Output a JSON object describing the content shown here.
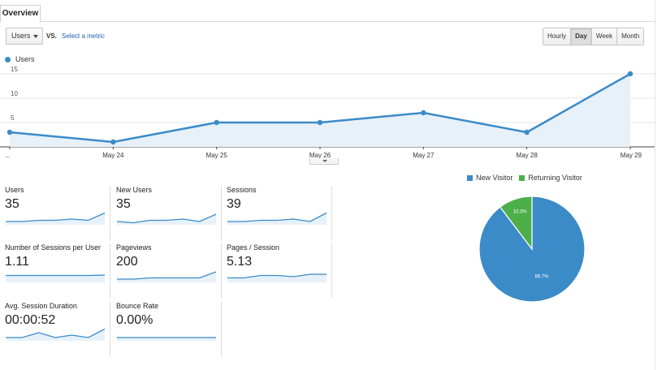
{
  "tabs": {
    "overview": "Overview"
  },
  "toolbar": {
    "metric_value": "Users",
    "vs": "VS.",
    "select_metric": "Select a metric",
    "granularity": [
      "Hourly",
      "Day",
      "Week",
      "Month"
    ],
    "active_granularity": "Day"
  },
  "legend": {
    "label": "Users"
  },
  "colors": {
    "accent": "#3b8bc8",
    "new_visitor": "#3b8bc8",
    "returning_visitor": "#4daf4a",
    "link": "#1a5fb4"
  },
  "chart_data": [
    {
      "type": "area",
      "series": [
        {
          "name": "Users",
          "values": [
            3,
            1,
            5,
            5,
            7,
            3,
            15
          ]
        }
      ],
      "x_tick_labels": [
        "...",
        "May 24",
        "May 25",
        "May 26",
        "May 27",
        "May 28",
        "May 29"
      ],
      "y_ticks": [
        5,
        10,
        15
      ],
      "ylim": [
        0,
        15
      ],
      "grid": true
    },
    {
      "type": "pie",
      "legend_position": "top",
      "slices": [
        {
          "name": "New Visitor",
          "value": 89.7,
          "label": "89.7%"
        },
        {
          "name": "Returning Visitor",
          "value": 10.3,
          "label": "10.3%"
        }
      ]
    }
  ],
  "metrics": [
    {
      "label": "Users",
      "value": "35",
      "spark": [
        2,
        2,
        3,
        3,
        4,
        3,
        9
      ]
    },
    {
      "label": "New Users",
      "value": "35",
      "spark": [
        2,
        1,
        3,
        3,
        4,
        2,
        8
      ]
    },
    {
      "label": "Sessions",
      "value": "39",
      "spark": [
        2,
        2,
        3,
        3,
        4,
        2,
        9
      ]
    },
    {
      "label": "Number of Sessions per User",
      "value": "1.11",
      "spark": [
        5,
        5,
        5,
        5,
        5,
        5,
        5.3
      ]
    },
    {
      "label": "Pageviews",
      "value": "200",
      "spark": [
        2,
        2,
        3,
        3,
        3,
        3,
        8
      ]
    },
    {
      "label": "Pages / Session",
      "value": "5.13",
      "spark": [
        3,
        3,
        5,
        5,
        4,
        6,
        6
      ]
    },
    {
      "label": "Avg. Session Duration",
      "value": "00:00:52",
      "spark": [
        2,
        2,
        6,
        2,
        4,
        2,
        9
      ]
    },
    {
      "label": "Bounce Rate",
      "value": "0.00%",
      "spark": [
        2,
        2,
        2,
        2,
        2,
        2,
        2
      ]
    }
  ]
}
